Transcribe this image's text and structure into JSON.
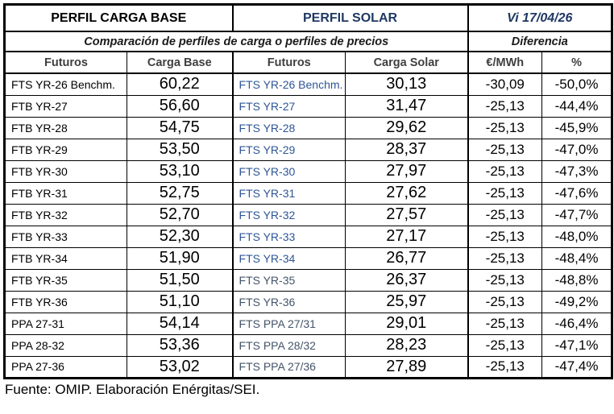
{
  "header": {
    "base_title": "PERFIL CARGA BASE",
    "solar_title": "PERFIL SOLAR",
    "date": "Vi 17/04/26",
    "comparison_subtitle": "Comparación de perfiles de carga o perfiles de precios",
    "difference_title": "Diferencia",
    "columns": [
      "Futuros",
      "Carga Base",
      "Futuros",
      "Carga Solar",
      "€/MWh",
      "%"
    ]
  },
  "colors": {
    "navy": "#1F3864",
    "blue": "#2E5597",
    "muted": "#44546A",
    "hgray": "#3F3F3F"
  },
  "rows": [
    {
      "base_label": "FTS YR-26 Benchm.",
      "base_price": "60,22",
      "solar_label": "FTS YR-26 Benchm.",
      "solar_price": "30,13",
      "diff_eur": "-30,09",
      "diff_pct": "-50,0%",
      "solar_style": "blue"
    },
    {
      "base_label": "FTB YR-27",
      "base_price": "56,60",
      "solar_label": "FTS YR-27",
      "solar_price": "31,47",
      "diff_eur": "-25,13",
      "diff_pct": "-44,4%",
      "solar_style": "blue"
    },
    {
      "base_label": "FTB YR-28",
      "base_price": "54,75",
      "solar_label": "FTS YR-28",
      "solar_price": "29,62",
      "diff_eur": "-25,13",
      "diff_pct": "-45,9%",
      "solar_style": "blue"
    },
    {
      "base_label": "FTB YR-29",
      "base_price": "53,50",
      "solar_label": "FTS YR-29",
      "solar_price": "28,37",
      "diff_eur": "-25,13",
      "diff_pct": "-47,0%",
      "solar_style": "blue"
    },
    {
      "base_label": "FTB YR-30",
      "base_price": "53,10",
      "solar_label": "FTS YR-30",
      "solar_price": "27,97",
      "diff_eur": "-25,13",
      "diff_pct": "-47,3%",
      "solar_style": "blue"
    },
    {
      "base_label": "FTB YR-31",
      "base_price": "52,75",
      "solar_label": "FTS YR-31",
      "solar_price": "27,62",
      "diff_eur": "-25,13",
      "diff_pct": "-47,6%",
      "solar_style": "blue"
    },
    {
      "base_label": "FTB YR-32",
      "base_price": "52,70",
      "solar_label": "FTS YR-32",
      "solar_price": "27,57",
      "diff_eur": "-25,13",
      "diff_pct": "-47,7%",
      "solar_style": "blue"
    },
    {
      "base_label": "FTB YR-33",
      "base_price": "52,30",
      "solar_label": "FTS YR-33",
      "solar_price": "27,17",
      "diff_eur": "-25,13",
      "diff_pct": "-48,0%",
      "solar_style": "blue"
    },
    {
      "base_label": "FTB YR-34",
      "base_price": "51,90",
      "solar_label": "FTS YR-34",
      "solar_price": "26,77",
      "diff_eur": "-25,13",
      "diff_pct": "-48,4%",
      "solar_style": "blue"
    },
    {
      "base_label": "FTB YR-35",
      "base_price": "51,50",
      "solar_label": "FTS YR-35",
      "solar_price": "26,37",
      "diff_eur": "-25,13",
      "diff_pct": "-48,8%",
      "solar_style": "muted"
    },
    {
      "base_label": "FTB YR-36",
      "base_price": "51,10",
      "solar_label": "FTS YR-36",
      "solar_price": "25,97",
      "diff_eur": "-25,13",
      "diff_pct": "-49,2%",
      "solar_style": "muted"
    },
    {
      "base_label": "PPA 27-31",
      "base_price": "54,14",
      "solar_label": "FTS PPA 27/31",
      "solar_price": "29,01",
      "diff_eur": "-25,13",
      "diff_pct": "-46,4%",
      "solar_style": "muted"
    },
    {
      "base_label": "PPA 28-32",
      "base_price": "53,36",
      "solar_label": "FTS PPA 28/32",
      "solar_price": "28,23",
      "diff_eur": "-25,13",
      "diff_pct": "-47,1%",
      "solar_style": "muted"
    },
    {
      "base_label": "PPA 27-36",
      "base_price": "53,02",
      "solar_label": "FTS PPA 27/36",
      "solar_price": "27,89",
      "diff_eur": "-25,13",
      "diff_pct": "-47,4%",
      "solar_style": "muted"
    }
  ],
  "footer": {
    "source": "Fuente: OMIP. Elaboración Enérgitas/SEI."
  }
}
